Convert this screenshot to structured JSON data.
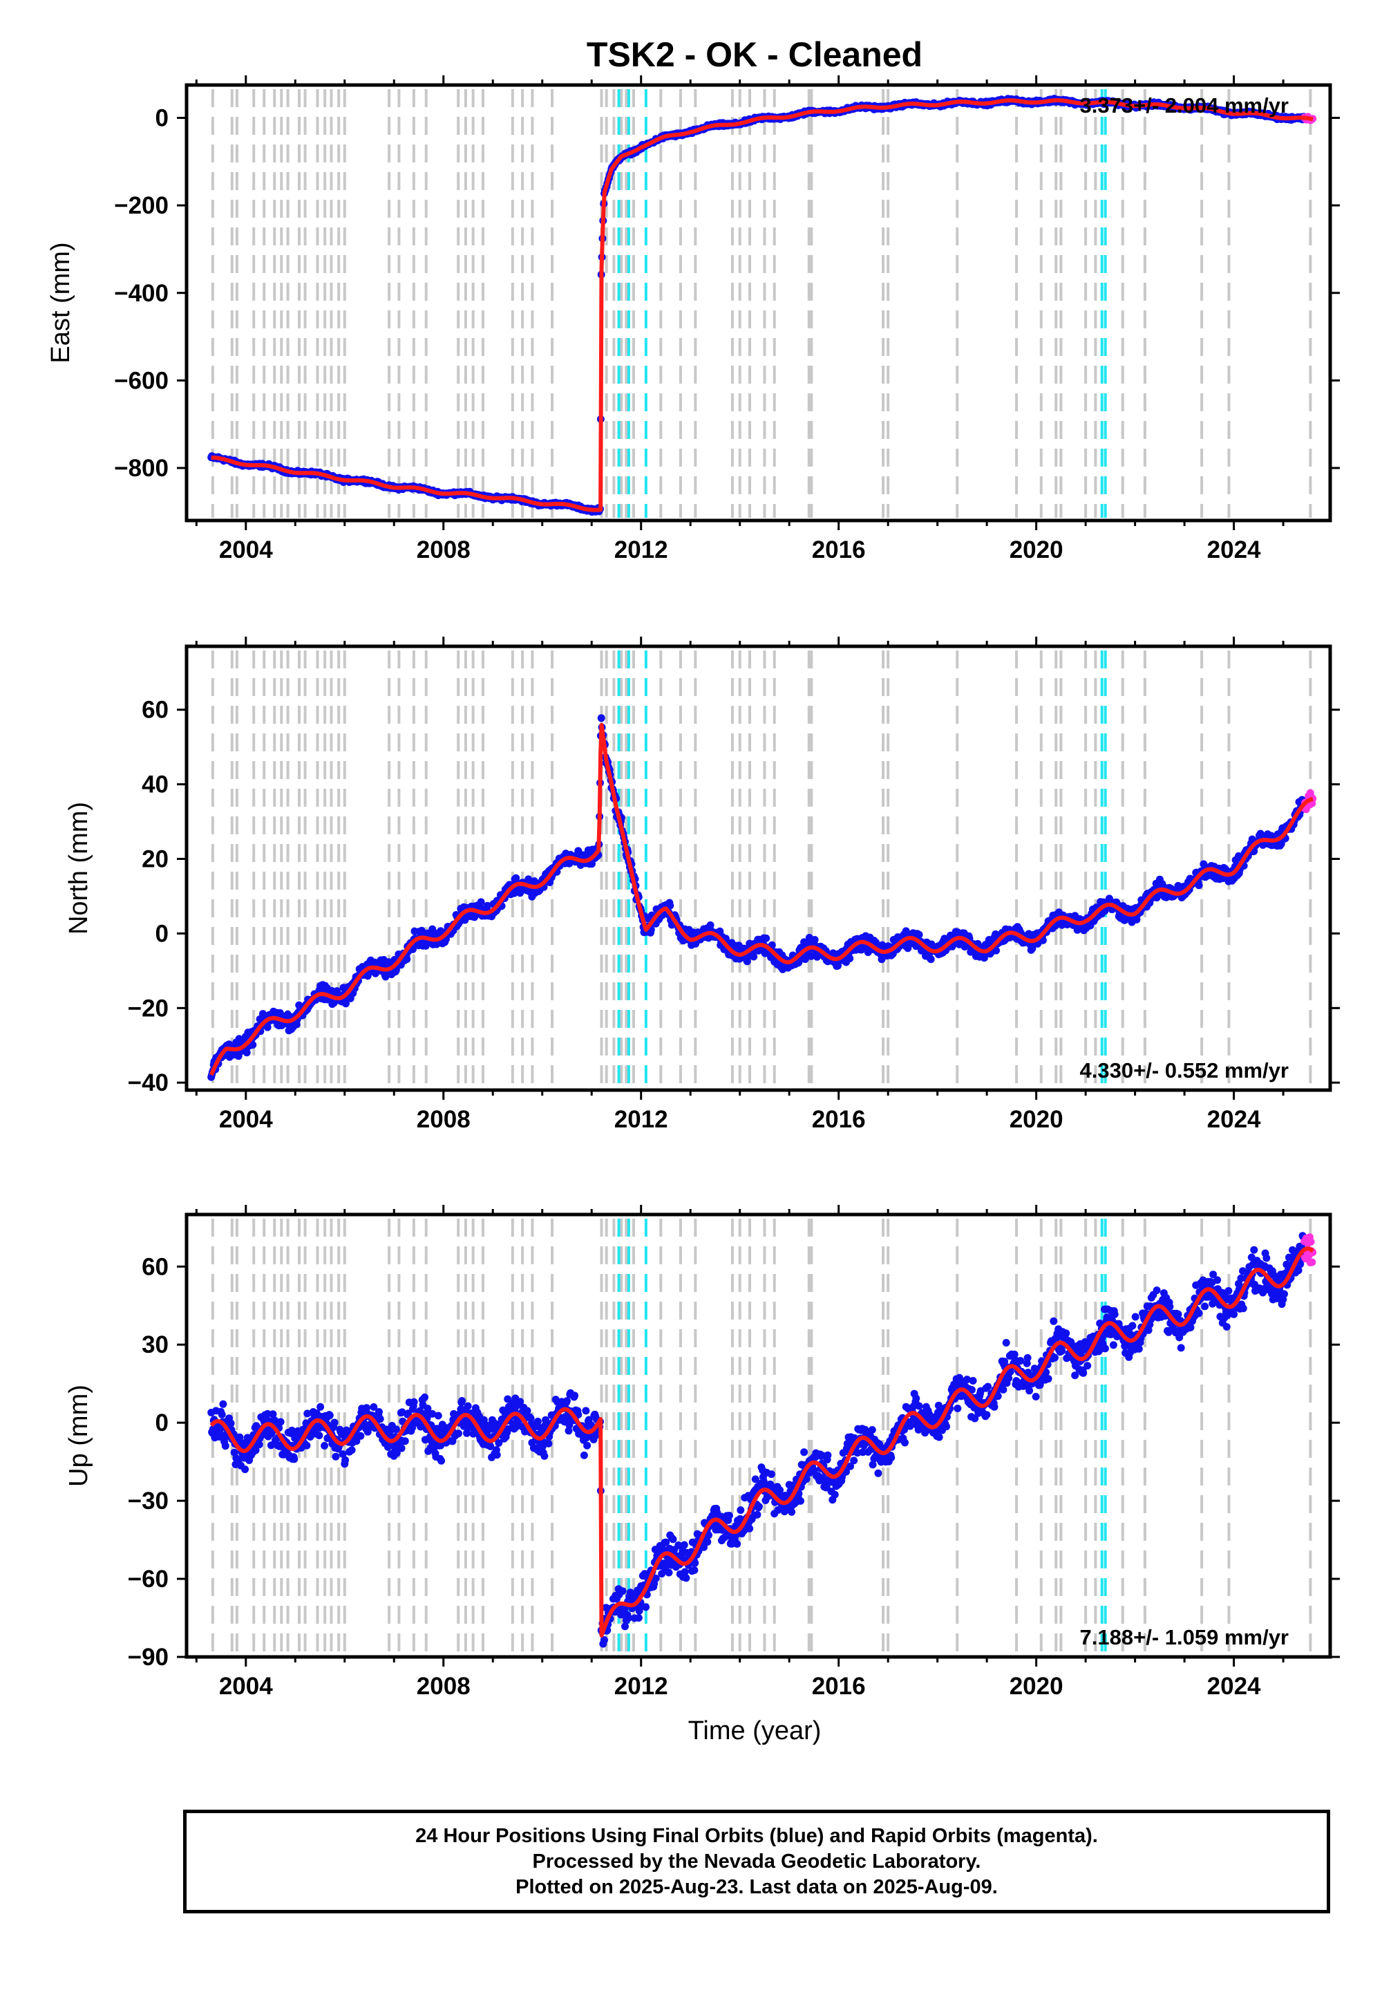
{
  "figure": {
    "title": "TSK2  - OK - Cleaned",
    "xlabel": "Time (year)"
  },
  "caption": {
    "line1": "24 Hour Positions Using Final Orbits (blue) and Rapid Orbits (magenta).",
    "line2": "Processed by the Nevada Geodetic Laboratory.",
    "line3": "Plotted on 2025-Aug-23. Last data on 2025-Aug-09."
  },
  "colors": {
    "final_orbits": "#1010ee",
    "rapid_orbits": "#ff33dd",
    "model_fit": "#ff1a1a",
    "equipment_change": "#c8c8c8",
    "earthquake": "#22e5f0"
  },
  "events": {
    "gray_dashed": [
      2003.33,
      2003.72,
      2003.82,
      2004.16,
      2004.37,
      2004.58,
      2004.72,
      2004.85,
      2005.08,
      2005.2,
      2005.45,
      2005.6,
      2005.73,
      2005.88,
      2006.0,
      2006.9,
      2007.1,
      2007.4,
      2007.65,
      2008.3,
      2008.45,
      2008.6,
      2008.8,
      2009.4,
      2009.6,
      2009.8,
      2010.2,
      2011.2,
      2011.3,
      2011.45,
      2011.6,
      2011.7,
      2011.85,
      2012.4,
      2012.8,
      2013.1,
      2013.85,
      2014.0,
      2014.2,
      2014.5,
      2014.7,
      2015.4,
      2015.45,
      2016.9,
      2017.0,
      2018.4,
      2019.6,
      2020.1,
      2020.4,
      2020.5,
      2021.0,
      2021.2,
      2021.75,
      2022.2,
      2023.35,
      2023.9,
      2025.55
    ],
    "cyan_dashed": [
      2011.55,
      2011.75,
      2012.1,
      2021.33,
      2021.4
    ]
  },
  "chart_data": [
    {
      "type": "scatter",
      "panel": "east",
      "ylabel": "East (mm)",
      "ylim": [
        -920,
        75
      ],
      "yticks": [
        0,
        -200,
        -400,
        -600,
        -800
      ],
      "xlim": [
        2002.8,
        2025.95
      ],
      "xticks": [
        2004,
        2008,
        2012,
        2016,
        2020,
        2024
      ],
      "rate_label": "3.373+/- 2.004 mm/yr",
      "rate_position": "top-right",
      "series": [
        {
          "x": [
            2003.3,
            2004,
            2005,
            2006,
            2007,
            2008,
            2009,
            2010,
            2011.18,
            2011.19,
            2011.25,
            2011.4,
            2011.6,
            2012,
            2012.5,
            2013,
            2014,
            2015,
            2016,
            2017,
            2018,
            2019,
            2020,
            2021,
            2022,
            2023,
            2024,
            2025,
            2025.6
          ],
          "y": [
            -778,
            -790,
            -808,
            -825,
            -842,
            -856,
            -866,
            -880,
            -895,
            -380,
            -175,
            -120,
            -90,
            -65,
            -45,
            -30,
            -10,
            5,
            18,
            27,
            32,
            36,
            38,
            36,
            30,
            25,
            12,
            2,
            -5
          ]
        }
      ]
    },
    {
      "type": "scatter",
      "panel": "north",
      "ylabel": "North (mm)",
      "ylim": [
        -42,
        77
      ],
      "yticks": [
        60,
        40,
        20,
        0,
        -20,
        -40
      ],
      "xlim": [
        2002.8,
        2025.95
      ],
      "xticks": [
        2004,
        2008,
        2012,
        2016,
        2020,
        2024
      ],
      "rate_label": "4.330+/- 0.552 mm/yr",
      "rate_position": "bottom-right",
      "series": [
        {
          "x": [
            2003.3,
            2003.6,
            2004,
            2005,
            2006,
            2007,
            2008,
            2009,
            2010,
            2011.15,
            2011.19,
            2011.3,
            2011.5,
            2011.8,
            2012.1,
            2012.5,
            2013,
            2014,
            2015,
            2016,
            2017,
            2018,
            2019,
            2020,
            2021,
            2022,
            2023,
            2024,
            2025,
            2025.6
          ],
          "y": [
            -39,
            -32,
            -28,
            -21,
            -15,
            -7,
            1,
            8,
            15,
            23,
            57,
            45,
            32,
            18,
            2,
            5,
            0,
            -4,
            -6,
            -5,
            -3,
            -3,
            -3,
            0,
            5,
            7,
            13,
            18,
            28,
            35
          ]
        }
      ]
    },
    {
      "type": "scatter",
      "panel": "up",
      "ylabel": "Up (mm)",
      "ylim": [
        -90,
        80
      ],
      "yticks": [
        60,
        30,
        0,
        -30,
        -60,
        -90
      ],
      "xlim": [
        2002.8,
        2025.95
      ],
      "xticks": [
        2004,
        2008,
        2012,
        2016,
        2020,
        2024
      ],
      "rate_label": "7.188+/- 1.059 mm/yr",
      "rate_position": "bottom-right",
      "series": [
        {
          "x": [
            2003.3,
            2004,
            2005,
            2006,
            2007,
            2008,
            2009,
            2010,
            2011.18,
            2011.19,
            2011.5,
            2012,
            2013,
            2014,
            2015,
            2016,
            2017,
            2018,
            2019,
            2020,
            2021,
            2022,
            2023,
            2024,
            2025,
            2025.6
          ],
          "y": [
            -4,
            -6,
            -5,
            -3,
            -2,
            -2,
            -2,
            -1,
            2,
            -82,
            -75,
            -62,
            -48,
            -36,
            -25,
            -15,
            -6,
            4,
            12,
            22,
            30,
            37,
            43,
            50,
            58,
            63
          ]
        }
      ]
    }
  ]
}
